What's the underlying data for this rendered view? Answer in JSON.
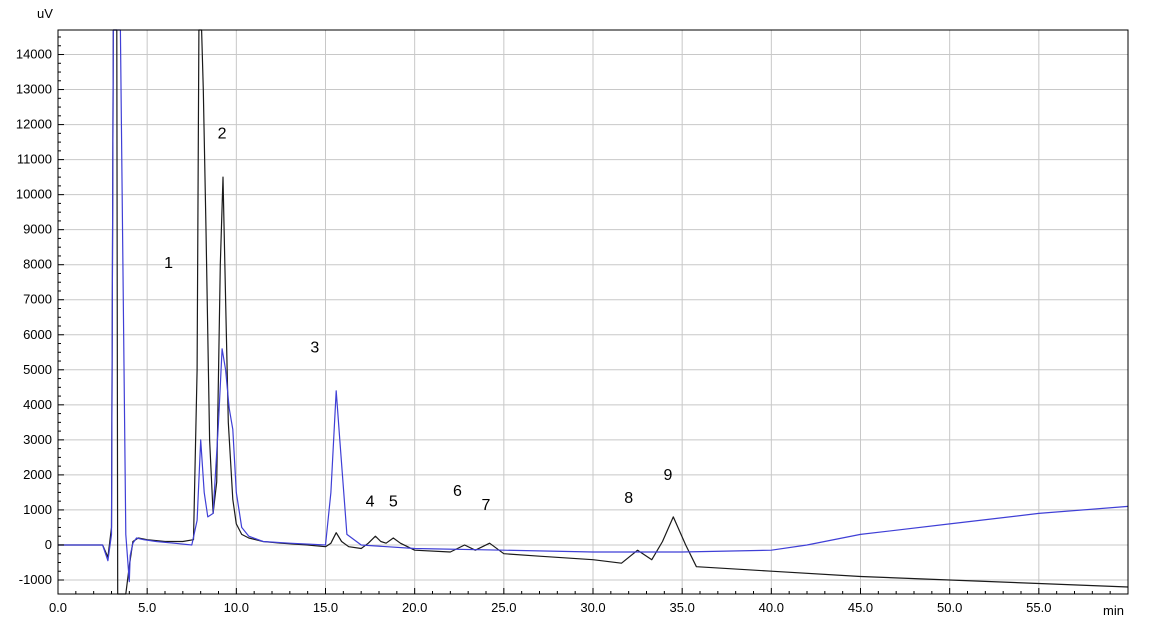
{
  "chart_data": {
    "type": "line",
    "title": "",
    "xlabel": "",
    "ylabel": "",
    "x_unit": "min",
    "y_unit": "uV",
    "xlim": [
      0,
      60
    ],
    "ylim": [
      -1400,
      14700
    ],
    "grid": true,
    "x_ticks": [
      0,
      5,
      10,
      15,
      20,
      25,
      30,
      35,
      40,
      45,
      50,
      55
    ],
    "x_tick_labels": [
      "0.0",
      "5.0",
      "10.0",
      "15.0",
      "20.0",
      "25.0",
      "30.0",
      "35.0",
      "40.0",
      "45.0",
      "50.0",
      "55.0"
    ],
    "y_ticks": [
      -1000,
      0,
      1000,
      2000,
      3000,
      4000,
      5000,
      6000,
      7000,
      8000,
      9000,
      10000,
      11000,
      12000,
      13000,
      14000
    ],
    "y_tick_labels": [
      "-1000",
      "0",
      "1000",
      "2000",
      "3000",
      "4000",
      "5000",
      "6000",
      "7000",
      "8000",
      "9000",
      "10000",
      "11000",
      "12000",
      "13000",
      "14000"
    ],
    "series": [
      {
        "color": "#1a1a1a",
        "x": [
          0,
          2.5,
          2.8,
          3.0,
          3.1,
          3.25,
          3.3,
          3.35,
          3.45,
          3.6,
          3.8,
          4.0,
          4.2,
          4.5,
          5.0,
          6.0,
          7.0,
          7.6,
          7.8,
          7.9,
          8.0,
          8.05,
          8.15,
          8.3,
          8.5,
          8.7,
          8.9,
          9.1,
          9.25,
          9.4,
          9.55,
          9.8,
          10.0,
          10.3,
          10.7,
          11.5,
          12.5,
          14.0,
          15.0,
          15.3,
          15.6,
          15.9,
          16.3,
          17.0,
          17.4,
          17.8,
          18.1,
          18.4,
          18.8,
          19.2,
          20.0,
          22.0,
          22.8,
          23.4,
          24.2,
          25.0,
          27.0,
          30.0,
          31.6,
          32.5,
          33.3,
          33.9,
          34.5,
          35.2,
          35.8,
          40.0,
          45.0,
          50.0,
          55.0,
          60.0
        ],
        "y": [
          0,
          0,
          -350,
          500,
          14700,
          14700,
          14700,
          -1400,
          -1400,
          -1400,
          -1400,
          -600,
          100,
          200,
          150,
          100,
          100,
          150,
          5000,
          14700,
          14700,
          14700,
          13000,
          9000,
          3000,
          900,
          1800,
          8000,
          10500,
          7000,
          3500,
          1300,
          600,
          300,
          200,
          100,
          50,
          0,
          -50,
          50,
          350,
          100,
          -50,
          -100,
          50,
          250,
          100,
          50,
          200,
          50,
          -150,
          -200,
          0,
          -150,
          50,
          -250,
          -320,
          -420,
          -520,
          -150,
          -420,
          100,
          800,
          0,
          -620,
          -750,
          -900,
          -1000,
          -1100,
          -1200
        ],
        "peak_labels": [
          {
            "text": "1",
            "x": 6.2,
            "y": 7900
          },
          {
            "text": "2",
            "x": 9.2,
            "y": 11600
          },
          {
            "text": "3",
            "x": 14.4,
            "y": 5500
          },
          {
            "text": "4",
            "x": 17.5,
            "y": 1100
          },
          {
            "text": "5",
            "x": 18.8,
            "y": 1100
          },
          {
            "text": "6",
            "x": 22.4,
            "y": 1400
          },
          {
            "text": "7",
            "x": 24.0,
            "y": 1000
          },
          {
            "text": "8",
            "x": 32.0,
            "y": 1200
          },
          {
            "text": "9",
            "x": 34.2,
            "y": 1850
          }
        ]
      },
      {
        "color": "#3f3fd6",
        "x": [
          0,
          2.5,
          2.8,
          3.0,
          3.1,
          3.2,
          3.3,
          3.5,
          3.8,
          4.0,
          4.05,
          4.2,
          4.4,
          4.8,
          5.5,
          6.5,
          7.5,
          7.8,
          8.0,
          8.2,
          8.4,
          8.7,
          9.0,
          9.2,
          9.4,
          9.6,
          9.8,
          10.0,
          10.3,
          10.7,
          11.5,
          13.0,
          15.0,
          15.3,
          15.6,
          15.8,
          16.2,
          17.0,
          20.0,
          25.0,
          30.0,
          35.0,
          40.0,
          42.0,
          45.0,
          50.0,
          55.0,
          60.0
        ],
        "y": [
          0,
          0,
          -450,
          300,
          14700,
          14700,
          14700,
          14700,
          300,
          -1050,
          -300,
          50,
          200,
          150,
          100,
          50,
          0,
          700,
          3000,
          1500,
          800,
          900,
          3500,
          5600,
          5000,
          3900,
          3300,
          1500,
          500,
          250,
          100,
          50,
          0,
          1500,
          4400,
          3000,
          300,
          0,
          -100,
          -150,
          -200,
          -200,
          -150,
          0,
          300,
          600,
          900,
          1100
        ]
      }
    ]
  },
  "labels": {
    "y_unit": "uV",
    "x_unit": "min"
  },
  "colors": {
    "grid": "#c8c8c8",
    "axis": "#000000"
  }
}
